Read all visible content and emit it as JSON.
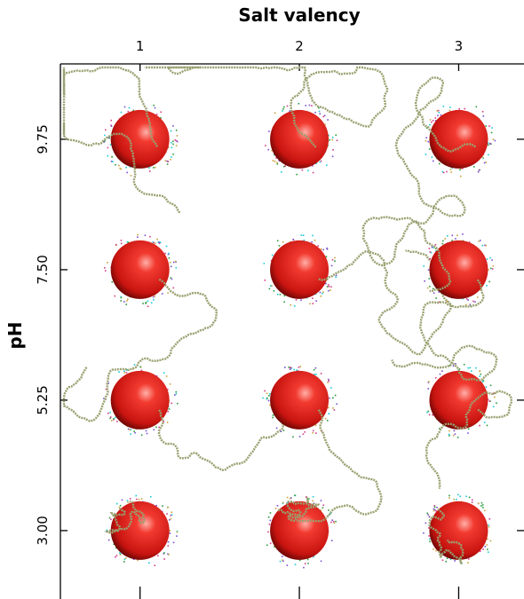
{
  "chart_data": {
    "type": "image-grid",
    "title": "Salt valency",
    "ylabel": "pH",
    "xticks": [
      1,
      2,
      3
    ],
    "yticks": [
      {
        "value": 3,
        "label": "3.00"
      },
      5.25,
      {
        "value": 7.5,
        "label": "7.50"
      },
      9.75
    ],
    "xlim": [
      0.5,
      3.41
    ],
    "ylim": [
      1.82,
      11.05
    ],
    "color": "#e8231f"
  }
}
